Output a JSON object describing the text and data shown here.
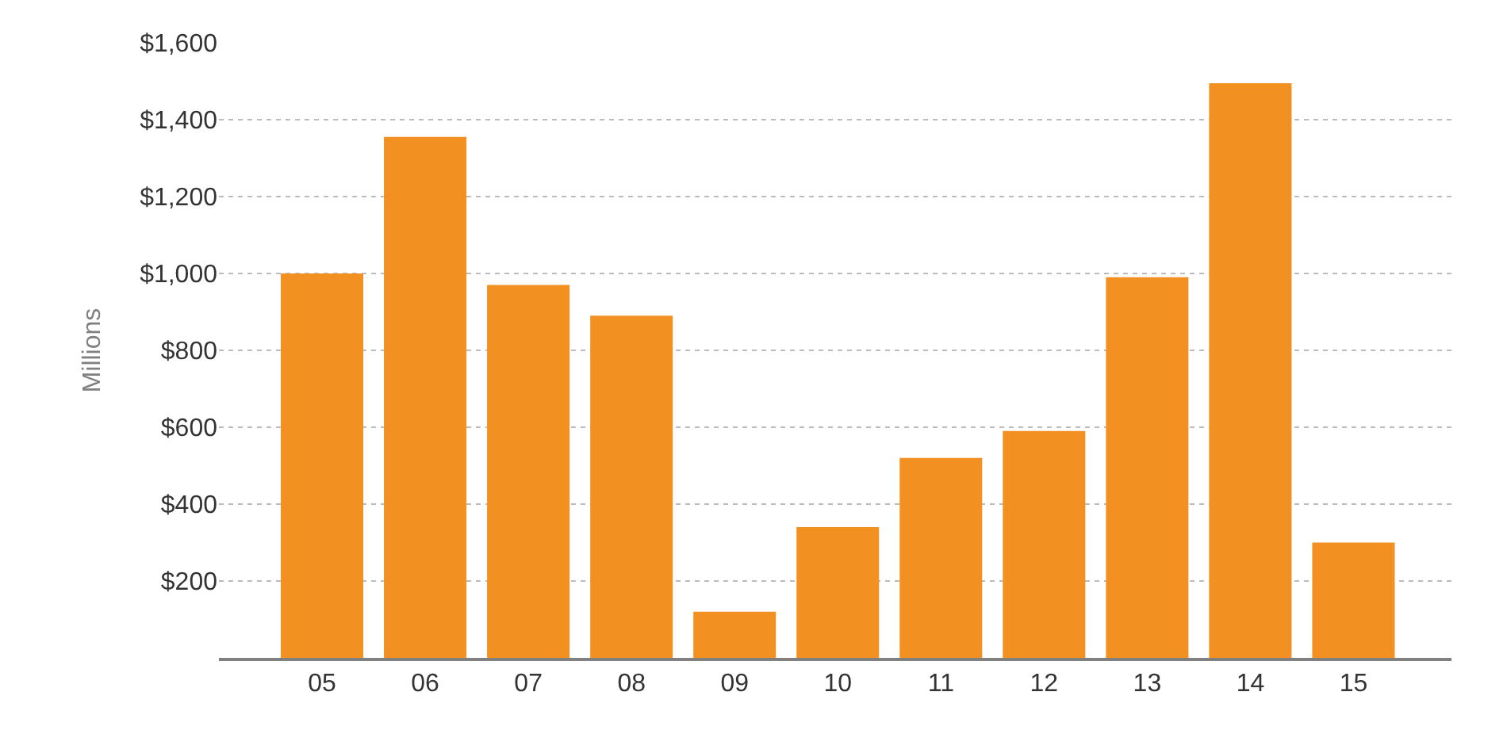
{
  "chart_data": {
    "type": "bar",
    "ylabel": "Millions",
    "categories": [
      "05",
      "06",
      "07",
      "08",
      "09",
      "10",
      "11",
      "12",
      "13",
      "14",
      "15"
    ],
    "values": [
      1000,
      1355,
      970,
      890,
      120,
      340,
      520,
      590,
      990,
      1495,
      300
    ],
    "color": "#f29022",
    "ylim": [
      0,
      1600
    ],
    "yticks": [
      {
        "value": 200,
        "label": "$200"
      },
      {
        "value": 400,
        "label": "$400"
      },
      {
        "value": 600,
        "label": "$600"
      },
      {
        "value": 800,
        "label": "$800"
      },
      {
        "value": 1000,
        "label": "$1,000"
      },
      {
        "value": 1200,
        "label": "$1,200"
      },
      {
        "value": 1400,
        "label": "$1,400"
      },
      {
        "value": 1600,
        "label": "$1,600"
      }
    ],
    "grid": "y",
    "legend": false
  }
}
